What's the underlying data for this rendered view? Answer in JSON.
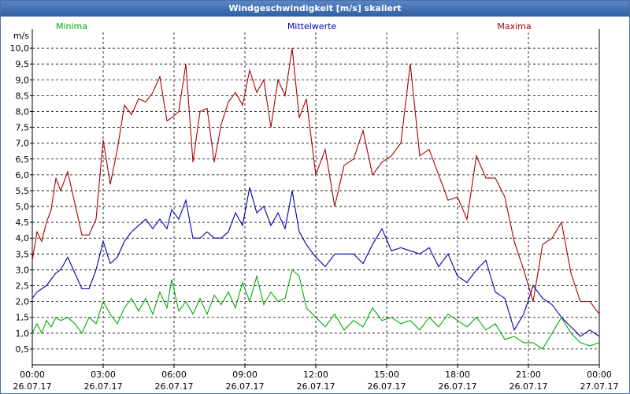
{
  "window": {
    "title": "Windgeschwindigkeit [m/s] skaliert"
  },
  "chart_data": {
    "type": "line",
    "title": "Windgeschwindigkeit [m/s] skaliert",
    "ylabel": "m/s",
    "ylim": [
      0,
      10.5
    ],
    "xlim": [
      0,
      24
    ],
    "grid": true,
    "y_ticks": [
      "0,5",
      "1,0",
      "1,5",
      "2,0",
      "2,5",
      "3,0",
      "3,5",
      "4,0",
      "4,5",
      "5,0",
      "5,5",
      "6,0",
      "6,5",
      "7,0",
      "7,5",
      "8,0",
      "8,5",
      "9,0",
      "9,5",
      "10,0"
    ],
    "x_ticks": [
      {
        "time": "00:00",
        "date": "26.07.17"
      },
      {
        "time": "03:00",
        "date": "26.07.17"
      },
      {
        "time": "06:00",
        "date": "26.07.17"
      },
      {
        "time": "09:00",
        "date": "26.07.17"
      },
      {
        "time": "12:00",
        "date": "26.07.17"
      },
      {
        "time": "15:00",
        "date": "26.07.17"
      },
      {
        "time": "18:00",
        "date": "26.07.17"
      },
      {
        "time": "21:00",
        "date": "26.07.17"
      },
      {
        "time": "00:00",
        "date": "27.07.17"
      }
    ],
    "series": [
      {
        "name": "Minima",
        "color": "#00aa00",
        "x": [
          0,
          0.2,
          0.4,
          0.6,
          0.8,
          1.0,
          1.2,
          1.5,
          1.8,
          2.1,
          2.4,
          2.7,
          3.0,
          3.3,
          3.6,
          3.9,
          4.2,
          4.5,
          4.8,
          5.1,
          5.4,
          5.7,
          5.9,
          6.2,
          6.5,
          6.8,
          7.1,
          7.4,
          7.7,
          8.0,
          8.3,
          8.6,
          8.9,
          9.2,
          9.5,
          9.8,
          10.1,
          10.4,
          10.7,
          11.0,
          11.3,
          11.6,
          12.0,
          12.4,
          12.8,
          13.2,
          13.6,
          14.0,
          14.4,
          14.8,
          15.2,
          15.6,
          16.0,
          16.4,
          16.8,
          17.2,
          17.6,
          18.0,
          18.4,
          18.8,
          19.2,
          19.6,
          20.0,
          20.4,
          20.8,
          21.2,
          21.6,
          22.0,
          22.4,
          22.8,
          23.2,
          23.6,
          24.0
        ],
        "values": [
          1.0,
          1.3,
          1.0,
          1.4,
          1.2,
          1.5,
          1.4,
          1.5,
          1.3,
          1.0,
          1.5,
          1.3,
          2.0,
          1.6,
          1.3,
          1.8,
          2.1,
          1.7,
          2.1,
          1.6,
          2.3,
          1.8,
          2.7,
          1.7,
          2.0,
          1.6,
          2.1,
          1.6,
          2.2,
          1.9,
          2.3,
          1.8,
          2.6,
          2.0,
          2.8,
          1.9,
          2.3,
          2.0,
          2.1,
          3.0,
          2.8,
          1.8,
          1.5,
          1.2,
          1.6,
          1.1,
          1.4,
          1.2,
          1.8,
          1.4,
          1.5,
          1.3,
          1.4,
          1.1,
          1.5,
          1.2,
          1.6,
          1.4,
          1.2,
          1.5,
          1.1,
          1.3,
          0.8,
          0.9,
          0.7,
          0.7,
          0.5,
          1.0,
          1.5,
          1.0,
          0.7,
          0.6,
          0.7
        ]
      },
      {
        "name": "Mittelwerte",
        "color": "#0000aa",
        "x": [
          0,
          0.2,
          0.4,
          0.6,
          0.8,
          1.0,
          1.2,
          1.5,
          1.8,
          2.1,
          2.4,
          2.7,
          3.0,
          3.3,
          3.6,
          3.9,
          4.2,
          4.5,
          4.8,
          5.1,
          5.4,
          5.7,
          5.9,
          6.2,
          6.5,
          6.8,
          7.1,
          7.4,
          7.7,
          8.0,
          8.3,
          8.6,
          8.9,
          9.2,
          9.5,
          9.8,
          10.1,
          10.4,
          10.7,
          11.0,
          11.3,
          11.6,
          12.0,
          12.4,
          12.8,
          13.2,
          13.6,
          14.0,
          14.4,
          14.8,
          15.2,
          15.6,
          16.0,
          16.4,
          16.8,
          17.2,
          17.6,
          18.0,
          18.4,
          18.8,
          19.2,
          19.6,
          20.0,
          20.4,
          20.8,
          21.2,
          21.6,
          22.0,
          22.4,
          22.8,
          23.2,
          23.6,
          24.0
        ],
        "values": [
          2.1,
          2.3,
          2.4,
          2.5,
          2.7,
          2.9,
          3.0,
          3.4,
          2.9,
          2.4,
          2.4,
          3.0,
          3.9,
          3.2,
          3.4,
          3.9,
          4.2,
          4.4,
          4.6,
          4.3,
          4.6,
          4.3,
          4.9,
          4.6,
          5.2,
          4.0,
          4.0,
          4.2,
          4.0,
          4.0,
          4.2,
          4.8,
          4.4,
          5.6,
          4.8,
          5.0,
          4.4,
          4.8,
          4.3,
          5.5,
          4.2,
          3.8,
          3.4,
          3.1,
          3.5,
          3.5,
          3.5,
          3.2,
          3.8,
          4.3,
          3.6,
          3.7,
          3.6,
          3.5,
          3.7,
          3.1,
          3.5,
          2.8,
          2.6,
          3.0,
          3.3,
          2.3,
          2.1,
          1.1,
          1.6,
          2.5,
          2.1,
          1.9,
          1.5,
          1.2,
          0.9,
          1.1,
          0.9
        ]
      },
      {
        "name": "Maxima",
        "color": "#aa0000",
        "x": [
          0,
          0.2,
          0.4,
          0.6,
          0.8,
          1.0,
          1.2,
          1.5,
          1.8,
          2.1,
          2.4,
          2.7,
          3.0,
          3.3,
          3.6,
          3.9,
          4.2,
          4.5,
          4.8,
          5.1,
          5.4,
          5.7,
          5.9,
          6.2,
          6.5,
          6.8,
          7.1,
          7.4,
          7.7,
          8.0,
          8.3,
          8.6,
          8.9,
          9.2,
          9.5,
          9.8,
          10.1,
          10.4,
          10.7,
          11.0,
          11.3,
          11.6,
          12.0,
          12.4,
          12.8,
          13.2,
          13.6,
          14.0,
          14.4,
          14.8,
          15.2,
          15.6,
          16.0,
          16.4,
          16.8,
          17.2,
          17.6,
          18.0,
          18.4,
          18.8,
          19.2,
          19.6,
          20.0,
          20.4,
          20.8,
          21.2,
          21.6,
          22.0,
          22.4,
          22.8,
          23.2,
          23.6,
          24.0
        ],
        "values": [
          3.3,
          4.2,
          3.9,
          4.5,
          4.9,
          5.9,
          5.5,
          6.1,
          5.1,
          4.1,
          4.1,
          4.6,
          7.1,
          5.7,
          6.8,
          8.2,
          7.9,
          8.4,
          8.3,
          8.6,
          9.1,
          7.7,
          7.8,
          8.0,
          9.5,
          6.4,
          8.0,
          8.1,
          6.4,
          7.6,
          8.3,
          8.6,
          8.2,
          9.3,
          8.6,
          9.0,
          7.5,
          9.0,
          8.5,
          10.0,
          7.8,
          8.4,
          6.0,
          6.8,
          5.0,
          6.3,
          6.5,
          7.4,
          6.0,
          6.4,
          6.6,
          7.0,
          9.5,
          6.6,
          6.8,
          6.0,
          5.2,
          5.3,
          4.6,
          6.6,
          5.9,
          5.9,
          5.3,
          3.9,
          3.0,
          2.0,
          3.8,
          4.0,
          4.5,
          2.9,
          2.0,
          2.0,
          1.6
        ]
      }
    ]
  }
}
